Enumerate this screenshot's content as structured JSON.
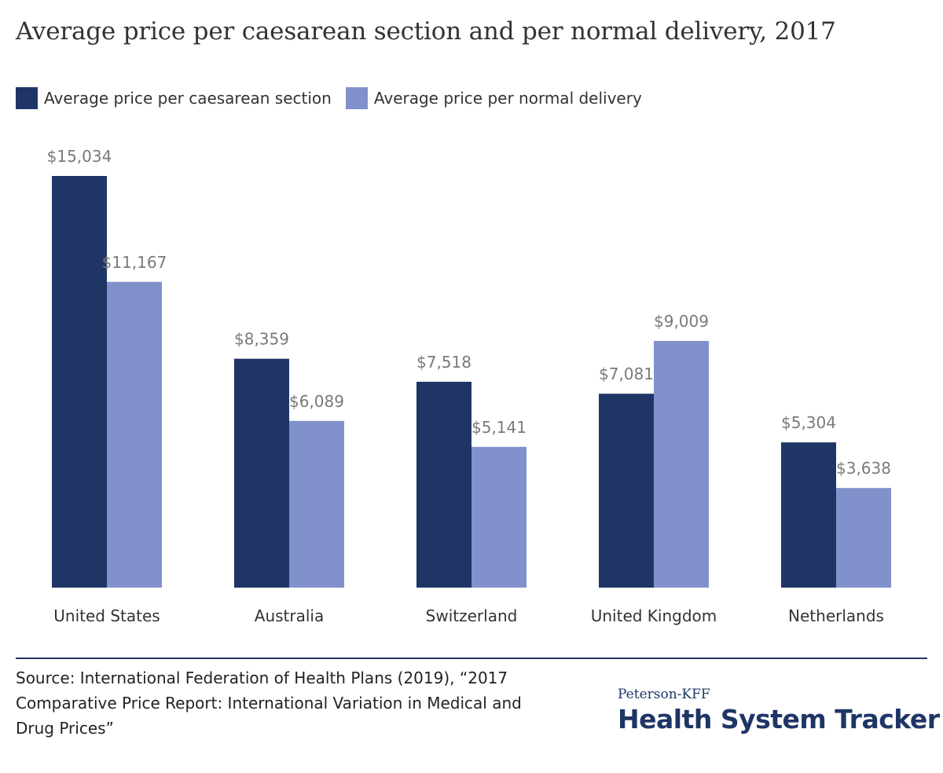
{
  "colors": {
    "caesarean": "#1f3566",
    "normal": "#8191cc",
    "value_label": "#7a7a7a",
    "brand": "#1f3566"
  },
  "chart_data": {
    "type": "bar",
    "title": "Average price per caesarean section and per normal delivery, 2017",
    "categories": [
      "United States",
      "Australia",
      "Switzerland",
      "United Kingdom",
      "Netherlands"
    ],
    "series": [
      {
        "name": "Average price per caesarean section",
        "values": [
          15034,
          8359,
          7518,
          7081,
          5304
        ],
        "labels": [
          "$15,034",
          "$8,359",
          "$7,518",
          "$7,081",
          "$5,304"
        ]
      },
      {
        "name": "Average price per normal delivery",
        "values": [
          11167,
          6089,
          5141,
          9009,
          3638
        ],
        "labels": [
          "$11,167",
          "$6,089",
          "$5,141",
          "$9,009",
          "$3,638"
        ]
      }
    ],
    "ylim": [
      0,
      15034
    ],
    "grid": false,
    "legend": "top-left"
  },
  "footer": {
    "source": "Source: International Federation of Health Plans (2019), “2017 Comparative Price Report: International Variation in Medical and Drug Prices”",
    "brand_top": "Peterson-KFF",
    "brand_main": "Health System Tracker"
  }
}
